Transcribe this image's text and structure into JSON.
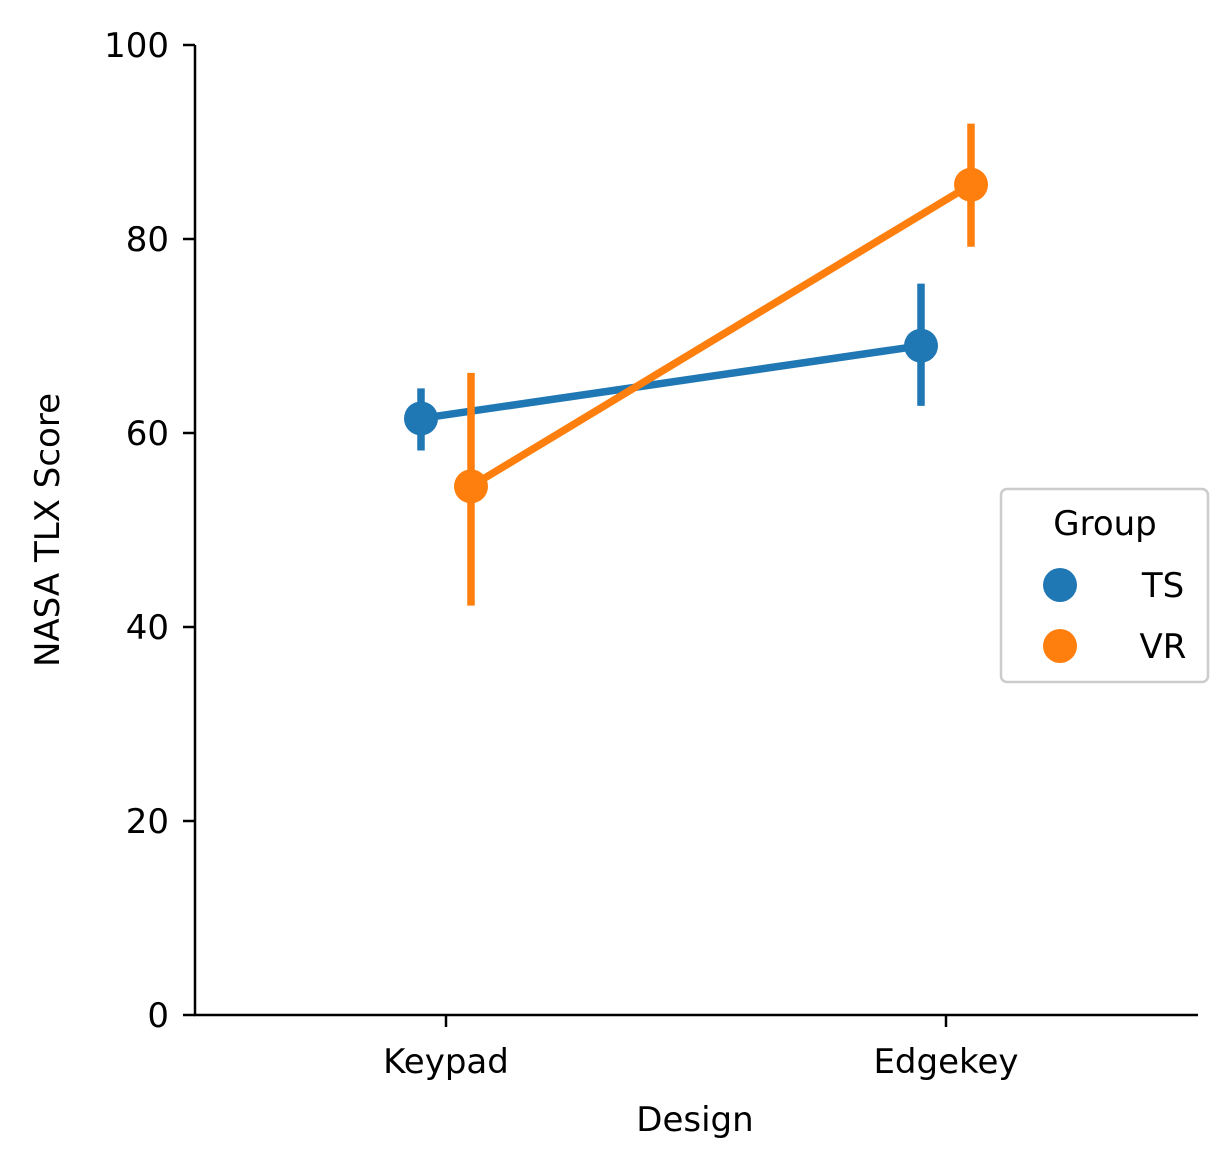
{
  "chart_data": {
    "type": "point",
    "xlabel": "Design",
    "ylabel": "NASA TLX Score",
    "categories": [
      "Keypad",
      "Edgekey"
    ],
    "ylim": [
      0,
      100
    ],
    "yticks": [
      0,
      20,
      40,
      60,
      80,
      100
    ],
    "grid": false,
    "legend": {
      "title": "Group",
      "placement": "center-right"
    },
    "series": [
      {
        "name": "TS",
        "color": "#1f77b4",
        "values": [
          61.5,
          69.0
        ],
        "ci_low": [
          58.2,
          62.8
        ],
        "ci_high": [
          64.6,
          75.4
        ]
      },
      {
        "name": "VR",
        "color": "#ff7f0e",
        "values": [
          54.5,
          85.6
        ],
        "ci_low": [
          42.2,
          79.2
        ],
        "ci_high": [
          66.2,
          91.9
        ]
      }
    ]
  }
}
